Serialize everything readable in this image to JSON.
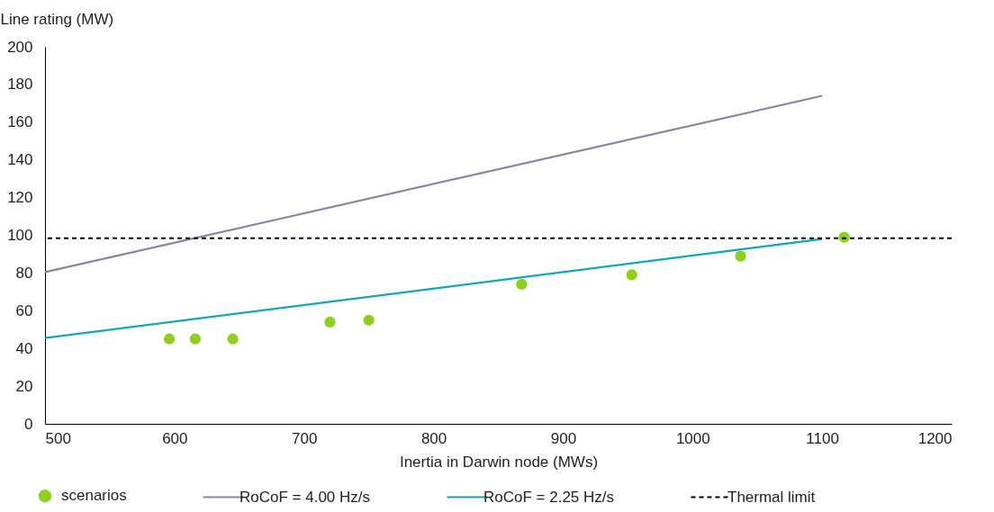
{
  "chart_data": {
    "type": "scatter",
    "xlabel": "Inertia in Darwin node (MWs)",
    "ylabel": "Line rating (MW)",
    "xlim": [
      500,
      1200
    ],
    "xticks": [
      500,
      600,
      700,
      800,
      900,
      1000,
      1100,
      1200
    ],
    "ylim": [
      0,
      200
    ],
    "yticks": [
      0,
      20,
      40,
      60,
      80,
      100,
      120,
      140,
      160,
      180,
      200
    ],
    "grid": false,
    "legend": "bottom",
    "series": [
      {
        "name": "scenarios",
        "marker": "circle",
        "color": "#8fd11a",
        "x": [
          596,
          616,
          645,
          720,
          750,
          868,
          953,
          1037,
          1117
        ],
        "values": [
          45,
          45,
          45,
          54,
          55,
          74,
          79,
          89,
          99
        ]
      },
      {
        "name": "RoCoF = 4.00 Hz/s",
        "type": "line",
        "color": "#8c84a0",
        "x": [
          500,
          1100
        ],
        "values": [
          80.5,
          174
        ]
      },
      {
        "name": "RoCoF = 2.25 Hz/s",
        "type": "line",
        "color": "#12a5bd",
        "x": [
          500,
          1100
        ],
        "values": [
          45.5,
          98
        ]
      }
    ],
    "ref_lines": [
      {
        "axis": "y",
        "value": 98.5,
        "label": "Thermal limit",
        "color": "#000000",
        "line_style": "dashed"
      }
    ]
  }
}
